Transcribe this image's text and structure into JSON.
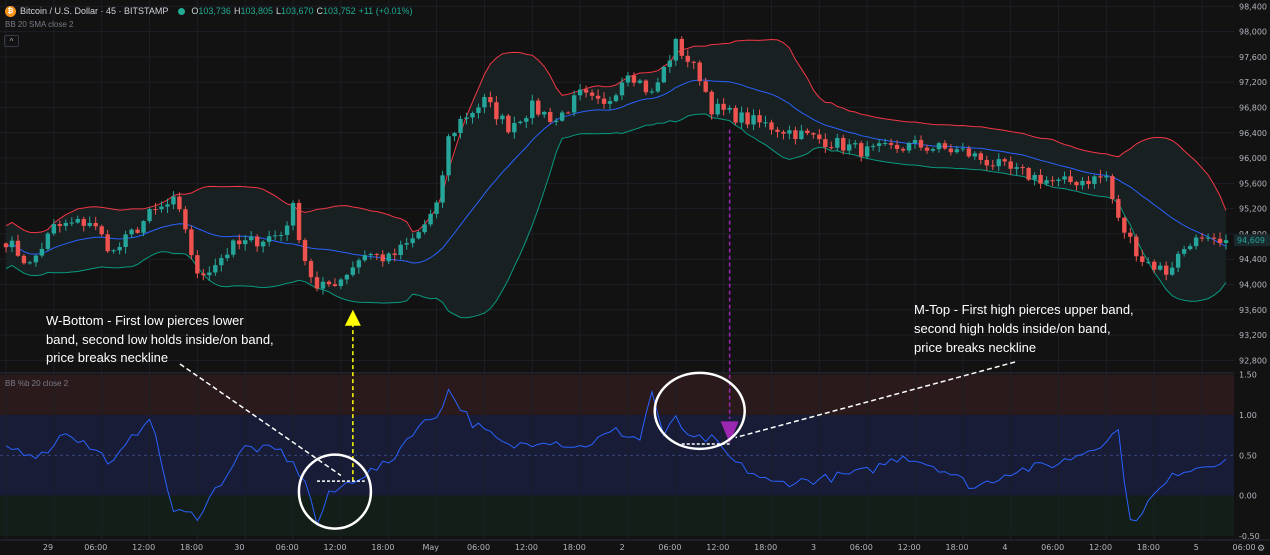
{
  "header": {
    "coin_symbol": "₿",
    "symbol": "Bitcoin / U.S. Dollar · 45 · BITSTAMP",
    "open_key": "O",
    "open": "103,736",
    "high_key": "H",
    "high": "103,805",
    "low_key": "L",
    "low": "103,670",
    "close_key": "C",
    "close": "103,752",
    "change": "+11 (+0.01%)"
  },
  "indicator_label": "BB 20 SMA close 2",
  "sub_indicator_label": "BB %b 20 close 2",
  "collapse_icon": "^",
  "settings_icon": "⚙",
  "colors": {
    "up": "#26a69a",
    "down": "#ef5350",
    "upper_band": "#f23645",
    "lower_band": "#089981",
    "basis": "#2962ff",
    "pctb": "#2962ff",
    "band_fill": "#1a2224",
    "zone_high": "#2a1a1c",
    "zone_mid": "#181c36",
    "zone_low": "#141e18",
    "w_arrow": "#ffff00",
    "m_arrow": "#9c27b0"
  },
  "annotations": {
    "w_bottom": [
      "W-Bottom  -  First  low  pierces  lower",
      "band, second low holds inside/on band,",
      "price breaks neckline"
    ],
    "m_top": [
      "M-Top - First high pierces upper band,",
      "second   high   holds   inside/on   band,",
      "price breaks neckline"
    ]
  },
  "chart_data": [
    {
      "type": "candlestick",
      "y_ticks": [
        "98,400",
        "98,000",
        "97,600",
        "97,200",
        "96,800",
        "96,400",
        "96,000",
        "95,600",
        "95,200",
        "94,800",
        "94,400",
        "94,000",
        "93,600",
        "93,200",
        "92,800"
      ],
      "y_tick_values": [
        98400,
        98000,
        97600,
        97200,
        96800,
        96400,
        96000,
        95600,
        95200,
        94800,
        94400,
        94000,
        93600,
        93200,
        92800
      ],
      "ylim": [
        92600,
        98500
      ],
      "last_price": "94,609",
      "x_labels": [
        "29",
        "06:00",
        "12:00",
        "18:00",
        "30",
        "06:00",
        "12:00",
        "18:00",
        "May",
        "06:00",
        "12:00",
        "18:00",
        "2",
        "06:00",
        "12:00",
        "18:00",
        "3",
        "06:00",
        "12:00",
        "18:00",
        "4",
        "06:00",
        "12:00",
        "18:00",
        "5",
        "06:00"
      ],
      "x_label_index": [
        0,
        8,
        16,
        24,
        32,
        40,
        48,
        56,
        64,
        72,
        80,
        88,
        96,
        104,
        112,
        120,
        128,
        136,
        144,
        152,
        160,
        168,
        176,
        184,
        192,
        200
      ],
      "waypoints": [
        [
          0,
          94700
        ],
        [
          4,
          94300
        ],
        [
          8,
          94900
        ],
        [
          14,
          95000
        ],
        [
          18,
          94500
        ],
        [
          24,
          95100
        ],
        [
          28,
          95300
        ],
        [
          30,
          94900
        ],
        [
          32,
          94100
        ],
        [
          38,
          94600
        ],
        [
          46,
          94800
        ],
        [
          48,
          95200
        ],
        [
          50,
          94400
        ],
        [
          52,
          93900
        ],
        [
          56,
          94100
        ],
        [
          60,
          94500
        ],
        [
          64,
          94400
        ],
        [
          68,
          94700
        ],
        [
          72,
          95200
        ],
        [
          74,
          96300
        ],
        [
          76,
          96600
        ],
        [
          80,
          96900
        ],
        [
          84,
          96500
        ],
        [
          88,
          96800
        ],
        [
          92,
          96600
        ],
        [
          96,
          97000
        ],
        [
          100,
          96800
        ],
        [
          104,
          97400
        ],
        [
          108,
          97000
        ],
        [
          112,
          97800
        ],
        [
          116,
          97300
        ],
        [
          118,
          96800
        ],
        [
          124,
          96600
        ],
        [
          128,
          96500
        ],
        [
          136,
          96300
        ],
        [
          144,
          96100
        ],
        [
          152,
          96200
        ],
        [
          160,
          96100
        ],
        [
          168,
          95800
        ],
        [
          176,
          95600
        ],
        [
          184,
          95700
        ],
        [
          186,
          95000
        ],
        [
          190,
          94400
        ],
        [
          194,
          94200
        ],
        [
          198,
          94700
        ],
        [
          204,
          94600
        ]
      ]
    },
    {
      "type": "line",
      "name": "BB %b 20 close 2",
      "y_ticks": [
        "1.50",
        "1.00",
        "0.50",
        "0.00",
        "-0.50"
      ],
      "y_tick_values": [
        1.5,
        1.0,
        0.5,
        0.0,
        -0.5
      ],
      "ylim": [
        -0.55,
        1.52
      ],
      "zones": [
        [
          1.0,
          1.5
        ],
        [
          0.0,
          1.0
        ],
        [
          -0.5,
          0.0
        ]
      ],
      "midline": 0.5,
      "waypoints": [
        [
          0,
          0.6
        ],
        [
          6,
          0.5
        ],
        [
          10,
          0.8
        ],
        [
          18,
          0.4
        ],
        [
          24,
          1.0
        ],
        [
          28,
          -0.2
        ],
        [
          32,
          -0.25
        ],
        [
          40,
          0.6
        ],
        [
          46,
          0.55
        ],
        [
          50,
          0.2
        ],
        [
          52,
          -0.35
        ],
        [
          54,
          0.0
        ],
        [
          58,
          0.2
        ],
        [
          64,
          0.4
        ],
        [
          68,
          0.8
        ],
        [
          72,
          1.0
        ],
        [
          74,
          1.3
        ],
        [
          78,
          0.9
        ],
        [
          84,
          0.6
        ],
        [
          90,
          0.7
        ],
        [
          96,
          0.6
        ],
        [
          102,
          0.8
        ],
        [
          106,
          0.7
        ],
        [
          108,
          1.3
        ],
        [
          110,
          0.7
        ],
        [
          112,
          1.0
        ],
        [
          114,
          0.7
        ],
        [
          118,
          0.7
        ],
        [
          122,
          0.4
        ],
        [
          128,
          0.15
        ],
        [
          136,
          0.2
        ],
        [
          144,
          0.3
        ],
        [
          150,
          0.5
        ],
        [
          156,
          0.35
        ],
        [
          162,
          0.1
        ],
        [
          168,
          0.3
        ],
        [
          176,
          0.4
        ],
        [
          182,
          0.6
        ],
        [
          186,
          0.8
        ],
        [
          188,
          -0.35
        ],
        [
          192,
          0.0
        ],
        [
          196,
          0.3
        ],
        [
          204,
          0.45
        ]
      ]
    }
  ]
}
